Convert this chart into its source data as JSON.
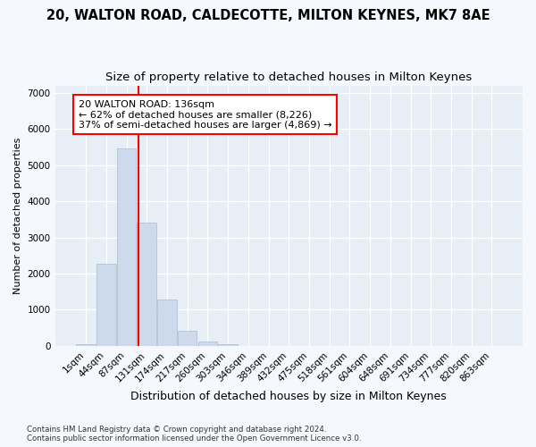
{
  "title_line1": "20, WALTON ROAD, CALDECOTTE, MILTON KEYNES, MK7 8AE",
  "title_line2": "Size of property relative to detached houses in Milton Keynes",
  "xlabel": "Distribution of detached houses by size in Milton Keynes",
  "ylabel": "Number of detached properties",
  "footnote": "Contains HM Land Registry data © Crown copyright and database right 2024.\nContains public sector information licensed under the Open Government Licence v3.0.",
  "bar_labels": [
    "1sqm",
    "44sqm",
    "87sqm",
    "131sqm",
    "174sqm",
    "217sqm",
    "260sqm",
    "303sqm",
    "346sqm",
    "389sqm",
    "432sqm",
    "475sqm",
    "518sqm",
    "561sqm",
    "604sqm",
    "648sqm",
    "691sqm",
    "734sqm",
    "777sqm",
    "820sqm",
    "863sqm"
  ],
  "bar_values": [
    60,
    2270,
    5450,
    3400,
    1280,
    430,
    120,
    50,
    0,
    0,
    0,
    0,
    0,
    0,
    0,
    0,
    0,
    0,
    0,
    0,
    0
  ],
  "bar_color": "#ccdaeb",
  "bar_edge_color": "#aabbd0",
  "vline_x": 2.57,
  "vline_color": "red",
  "annotation_text": "20 WALTON ROAD: 136sqm\n← 62% of detached houses are smaller (8,226)\n37% of semi-detached houses are larger (4,869) →",
  "annotation_box_color": "white",
  "annotation_box_edge": "red",
  "ylim": [
    0,
    7200
  ],
  "yticks": [
    0,
    1000,
    2000,
    3000,
    4000,
    5000,
    6000,
    7000
  ],
  "bg_color": "#f5f8fc",
  "plot_bg_color": "#e8eef5",
  "grid_color": "white",
  "title_fontsize": 10.5,
  "subtitle_fontsize": 9.5,
  "xlabel_fontsize": 9,
  "ylabel_fontsize": 8,
  "tick_fontsize": 7.5,
  "annot_fontsize": 8
}
